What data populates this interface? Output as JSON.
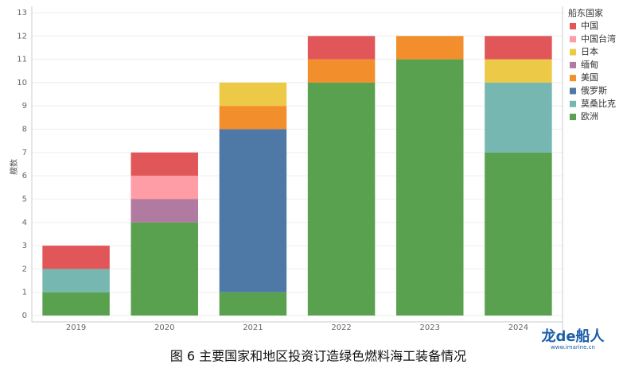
{
  "chart_data": {
    "type": "stacked_bar",
    "caption": "图 6  主要国家和地区投资订造绿色燃料海工装备情况",
    "y_label": "艘数",
    "legend_title": "船东国家",
    "watermark": "龙de船人",
    "watermark_url": "www.imarine.cn",
    "categories": [
      "2019",
      "2020",
      "2021",
      "2022",
      "2023",
      "2024"
    ],
    "ylim": [
      0,
      13
    ],
    "yticks": [
      0,
      1,
      2,
      3,
      4,
      5,
      6,
      7,
      8,
      9,
      10,
      11,
      12,
      13
    ],
    "grid": true,
    "series": [
      {
        "name": "欧洲",
        "color": "#59a14f",
        "values": [
          1,
          4,
          1,
          10,
          11,
          7
        ]
      },
      {
        "name": "莫桑比克",
        "color": "#76b7b2",
        "values": [
          1,
          0,
          0,
          0,
          0,
          3
        ]
      },
      {
        "name": "俄罗斯",
        "color": "#4e79a7",
        "values": [
          0,
          0,
          7,
          0,
          0,
          0
        ]
      },
      {
        "name": "美国",
        "color": "#f28e2b",
        "values": [
          0,
          0,
          1,
          1,
          1,
          0
        ]
      },
      {
        "name": "缅甸",
        "color": "#b07aa1",
        "values": [
          0,
          1,
          0,
          0,
          0,
          0
        ]
      },
      {
        "name": "日本",
        "color": "#edc948",
        "values": [
          0,
          0,
          1,
          0,
          0,
          1
        ]
      },
      {
        "name": "中国台湾",
        "color": "#ff9da7",
        "values": [
          0,
          1,
          0,
          0,
          0,
          0
        ]
      },
      {
        "name": "中国",
        "color": "#e15759",
        "values": [
          1,
          1,
          0,
          1,
          0,
          1
        ]
      }
    ]
  }
}
